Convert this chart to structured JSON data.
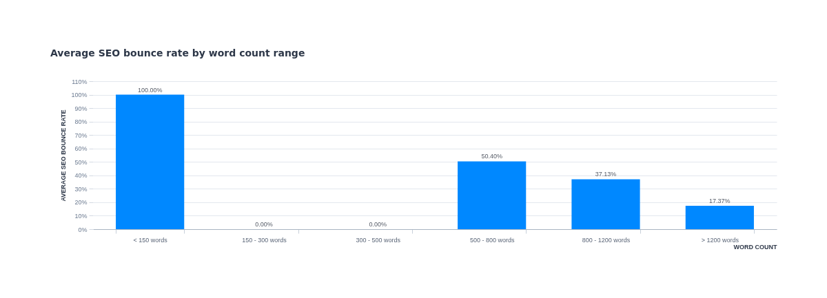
{
  "chart_data": {
    "type": "bar",
    "title": "Average SEO bounce rate by word count range",
    "xlabel": "WORD COUNT",
    "ylabel": "AVERAGE SEO BOUNCE RATE",
    "categories": [
      "< 150 words",
      "150 - 300 words",
      "300 - 500 words",
      "500 - 800 words",
      "800 - 1200 words",
      "> 1200 words"
    ],
    "values": [
      100,
      0,
      0,
      50.4,
      37.13,
      17.37
    ],
    "value_labels": [
      "100.00%",
      "0.00%",
      "0.00%",
      "50.40%",
      "37.13%",
      "17.37%"
    ],
    "color": "#0088ff",
    "ylim": [
      0,
      110
    ],
    "yticks": [
      {
        "value": 0,
        "label": "0%"
      },
      {
        "value": 10,
        "label": "10%"
      },
      {
        "value": 20,
        "label": "20%"
      },
      {
        "value": 30,
        "label": "30%"
      },
      {
        "value": 40,
        "label": "40%"
      },
      {
        "value": 50,
        "label": "50%"
      },
      {
        "value": 60,
        "label": "60%"
      },
      {
        "value": 70,
        "label": "70%"
      },
      {
        "value": 80,
        "label": "80%"
      },
      {
        "value": 90,
        "label": "90%"
      },
      {
        "value": 100,
        "label": "100%"
      },
      {
        "value": 110,
        "label": "110%"
      }
    ],
    "grid": "y"
  }
}
